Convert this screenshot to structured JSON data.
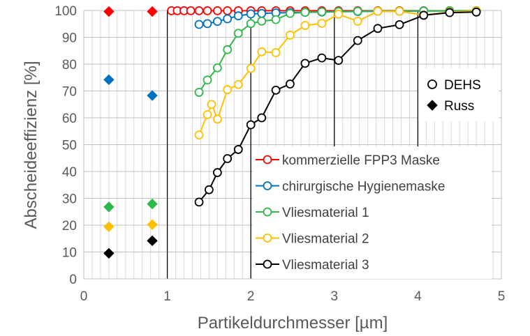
{
  "chart_data": {
    "type": "line",
    "xlabel": "Partikeldurchmesser [µm]",
    "ylabel": "Abscheideeffizienz [%]",
    "xlim": [
      0,
      5
    ],
    "ylim": [
      0,
      100
    ],
    "xticks": [
      0,
      1,
      2,
      3,
      4,
      5
    ],
    "yticks": [
      0,
      10,
      20,
      30,
      40,
      50,
      60,
      70,
      80,
      90,
      100
    ],
    "grid": {
      "minor_x_step": 0.1,
      "major_x_black_lines": [
        1,
        2,
        3,
        4
      ],
      "major_y": true
    },
    "legend_markers": [
      {
        "label": "DEHS",
        "marker": "circle-open"
      },
      {
        "label": "Russ",
        "marker": "diamond-filled"
      }
    ],
    "series": [
      {
        "name": "kommerzielle FPP3 Maske",
        "color": "#ff0000",
        "dehs": {
          "x": [
            1.05,
            1.12,
            1.2,
            1.28,
            1.38,
            1.48,
            1.6,
            1.72,
            1.85,
            2.0,
            2.13,
            2.3,
            2.47,
            2.65,
            2.85,
            3.05,
            3.28,
            3.52,
            3.78,
            4.07,
            4.38,
            4.7
          ],
          "y": [
            99.9,
            99.9,
            99.9,
            99.9,
            99.9,
            99.9,
            99.9,
            99.9,
            99.9,
            99.9,
            99.9,
            99.9,
            99.9,
            99.9,
            99.9,
            99.9,
            99.9,
            99.9,
            99.9,
            99.9,
            99.9,
            99.9
          ]
        },
        "russ": {
          "x": [
            0.3,
            0.82
          ],
          "y": [
            99.6,
            99.6
          ]
        }
      },
      {
        "name": "chirurgische Hygienemaske",
        "color": "#0070c0",
        "dehs": {
          "x": [
            1.38,
            1.48,
            1.6,
            1.72,
            1.85,
            2.0,
            2.13,
            2.3,
            2.47,
            2.65,
            2.85,
            3.05,
            3.28,
            3.52,
            3.78,
            4.07,
            4.38,
            4.7
          ],
          "y": [
            94.8,
            95.1,
            95.9,
            96.9,
            98.0,
            98.7,
            98.9,
            99.1,
            99.2,
            99.3,
            99.4,
            99.5,
            99.6,
            99.7,
            99.7,
            99.8,
            99.8,
            99.8
          ]
        },
        "russ": {
          "x": [
            0.3,
            0.82
          ],
          "y": [
            74.2,
            68.3
          ]
        }
      },
      {
        "name": "Vliesmaterial 1",
        "color": "#2eb84c",
        "dehs": {
          "x": [
            1.38,
            1.48,
            1.6,
            1.72,
            1.85,
            2.0,
            2.13,
            2.3,
            2.47,
            2.65,
            2.85,
            3.05,
            3.28,
            3.52,
            3.78,
            4.07,
            4.38,
            4.7
          ],
          "y": [
            69.5,
            74.1,
            78.6,
            85.4,
            91.5,
            95.1,
            96.0,
            96.6,
            98.9,
            99.3,
            99.5,
            99.6,
            99.7,
            99.8,
            99.8,
            99.8,
            99.9,
            99.9
          ]
        },
        "russ": {
          "x": [
            0.3,
            0.82
          ],
          "y": [
            26.8,
            27.9
          ]
        }
      },
      {
        "name": "Vliesmaterial 2",
        "color": "#ffc000",
        "dehs": {
          "x": [
            1.38,
            1.48,
            1.53,
            1.6,
            1.72,
            1.85,
            2.0,
            2.13,
            2.3,
            2.47,
            2.65,
            2.85,
            3.05,
            3.28,
            3.52,
            3.78,
            4.07,
            4.38,
            4.7
          ],
          "y": [
            53.6,
            61.2,
            65.0,
            59.5,
            70.5,
            72.4,
            78.4,
            84.6,
            84.3,
            90.8,
            94.4,
            95.2,
            98.6,
            96.0,
            99.7,
            99.7,
            98.3,
            99.4,
            99.8
          ]
        },
        "russ": {
          "x": [
            0.3,
            0.82
          ],
          "y": [
            19.4,
            20.2
          ]
        }
      },
      {
        "name": "Vliesmaterial 3",
        "color": "#000000",
        "dehs": {
          "x": [
            1.38,
            1.5,
            1.6,
            1.72,
            1.85,
            2.0,
            2.13,
            2.3,
            2.47,
            2.65,
            2.85,
            3.05,
            3.28,
            3.52,
            3.78,
            4.07,
            4.38,
            4.7
          ],
          "y": [
            28.6,
            33.2,
            39.6,
            44.8,
            48.2,
            57.4,
            60.0,
            70.3,
            72.6,
            80.3,
            82.3,
            81.4,
            88.8,
            93.3,
            94.7,
            98.2,
            99.2,
            99.4
          ]
        },
        "russ": {
          "x": [
            0.3,
            0.82
          ],
          "y": [
            9.5,
            14.2
          ]
        }
      }
    ]
  }
}
